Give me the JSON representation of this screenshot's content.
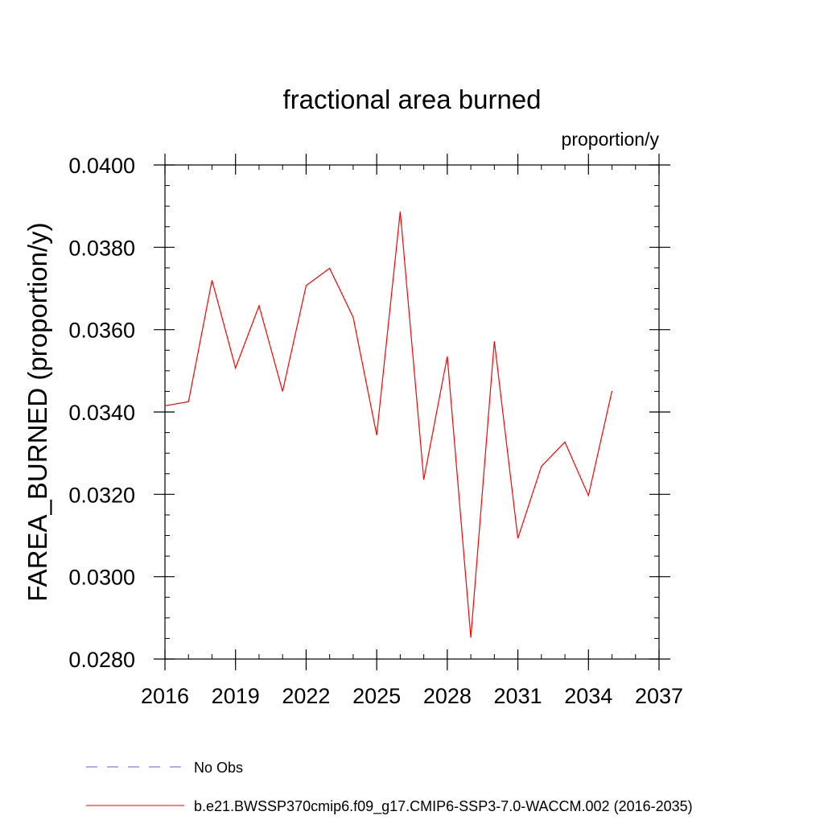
{
  "chart_data": {
    "type": "line",
    "title": "fractional area burned",
    "units_label": "proportion/y",
    "ylabel": "FAREA_BURNED  (proportion/y)",
    "xlabel": "",
    "xlim": [
      2016,
      2037
    ],
    "ylim": [
      0.028,
      0.04
    ],
    "x_ticks": [
      2016,
      2019,
      2022,
      2025,
      2028,
      2031,
      2034,
      2037
    ],
    "x_tick_labels": [
      "2016",
      "2019",
      "2022",
      "2025",
      "2028",
      "2031",
      "2034",
      "2037"
    ],
    "y_ticks": [
      0.028,
      0.03,
      0.032,
      0.034,
      0.036,
      0.038,
      0.04
    ],
    "y_tick_labels": [
      "0.0280",
      "0.0300",
      "0.0320",
      "0.0340",
      "0.0360",
      "0.0380",
      "0.0400"
    ],
    "x": [
      2016,
      2017,
      2018,
      2019,
      2020,
      2021,
      2022,
      2023,
      2024,
      2025,
      2026,
      2027,
      2028,
      2029,
      2030,
      2031,
      2032,
      2033,
      2034,
      2035
    ],
    "series": [
      {
        "name": "b.e21.BWSSP370cmip6.f09_g17.CMIP6-SSP3-7.0-WACCM.002 (2016-2035)",
        "color": "#ff0000",
        "values": [
          0.03415,
          0.03425,
          0.0372,
          0.03507,
          0.03658,
          0.0345,
          0.03707,
          0.03749,
          0.0363,
          0.03344,
          0.03887,
          0.03236,
          0.03535,
          0.02852,
          0.03572,
          0.03093,
          0.03268,
          0.03327,
          0.03197,
          0.03451
        ]
      }
    ],
    "legend": [
      {
        "label": "No Obs",
        "color": "#6a5acd",
        "style": "dashed"
      },
      {
        "label": "b.e21.BWSSP370cmip6.f09_g17.CMIP6-SSP3-7.0-WACCM.002 (2016-2035)",
        "color": "#ff0000",
        "style": "solid"
      }
    ],
    "legend_position": "bottom",
    "grid": false
  }
}
